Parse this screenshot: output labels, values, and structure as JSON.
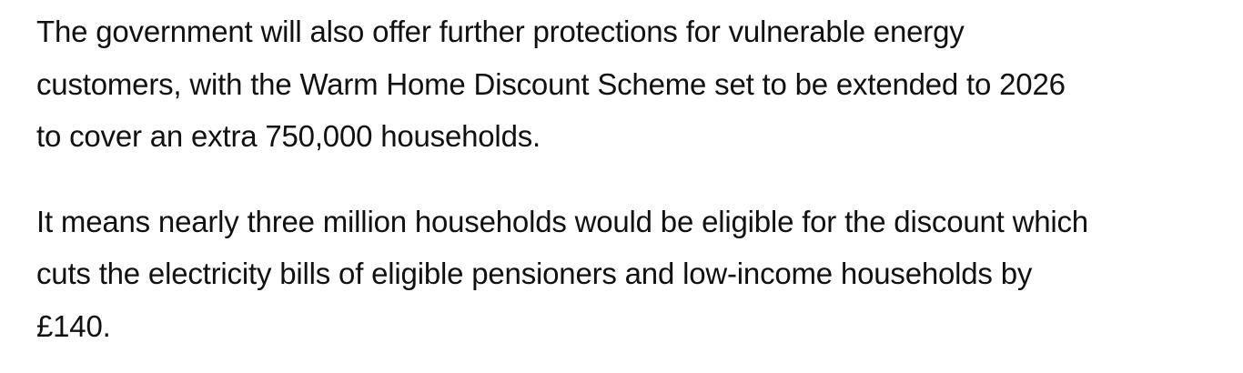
{
  "article": {
    "paragraphs": [
      {
        "lines": [
          "The government will also offer further protections for vulnerable energy",
          "customers, with the Warm Home Discount Scheme set to be extended to 2026",
          "to cover an extra 750,000 households."
        ]
      },
      {
        "lines": [
          "It means nearly three million households would be eligible for the discount which",
          "cuts the electricity bills of eligible pensioners and low-income households by",
          "£140."
        ]
      }
    ]
  }
}
